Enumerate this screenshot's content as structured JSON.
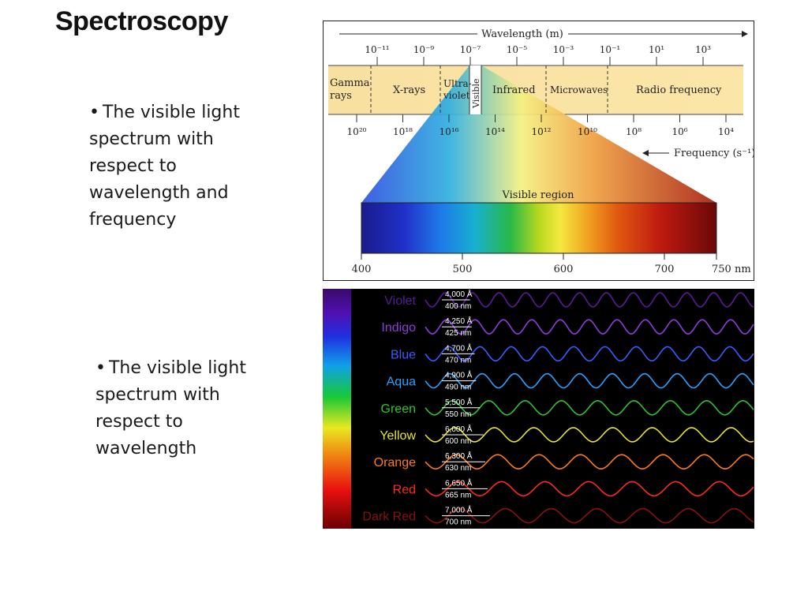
{
  "title": "Spectroscopy",
  "bullets": [
    "The visible light spectrum with respect to wavelength and frequency",
    "The visible light spectrum with respect to wavelength"
  ],
  "em_spectrum": {
    "wavelength_label": "Wavelength (m)",
    "frequency_label": "Frequency (s⁻¹)",
    "visible_region_label": "Visible region",
    "wavelength_ticks": [
      "10⁻¹¹",
      "10⁻⁹",
      "10⁻⁷",
      "10⁻⁵",
      "10⁻³",
      "10⁻¹",
      "10¹",
      "10³"
    ],
    "frequency_ticks": [
      "10²⁰",
      "10¹⁸",
      "10¹⁶",
      "10¹⁴",
      "10¹²",
      "10¹⁰",
      "10⁸",
      "10⁶",
      "10⁴"
    ],
    "regions": [
      "Gamma",
      "rays",
      "X-rays",
      "Ultra-",
      "violet",
      "Visible",
      "Infrared",
      "Microwaves",
      "Radio frequency"
    ],
    "nm_ticks": [
      "400",
      "500",
      "600",
      "700",
      "750 nm"
    ]
  },
  "visible_waves": [
    {
      "name": "Violet",
      "angstrom": "4,000 Å",
      "nm": "400 nm",
      "color": "#5a1a9a"
    },
    {
      "name": "Indigo",
      "angstrom": "4,250 Å",
      "nm": "425 nm",
      "color": "#8a3fd8"
    },
    {
      "name": "Blue",
      "angstrom": "4,700 Å",
      "nm": "470 nm",
      "color": "#3a5cff"
    },
    {
      "name": "Aqua",
      "angstrom": "4,900 Å",
      "nm": "490 nm",
      "color": "#2aa0ff"
    },
    {
      "name": "Green",
      "angstrom": "5,500 Å",
      "nm": "550 nm",
      "color": "#2fc42f"
    },
    {
      "name": "Yellow",
      "angstrom": "6,000 Å",
      "nm": "600 nm",
      "color": "#e6e62a"
    },
    {
      "name": "Orange",
      "angstrom": "6,300 Å",
      "nm": "630 nm",
      "color": "#ff7a1a"
    },
    {
      "name": "Red",
      "angstrom": "6,650 Å",
      "nm": "665 nm",
      "color": "#ff2a1a"
    },
    {
      "name": "Dark Red",
      "angstrom": "7,000 Å",
      "nm": "700 nm",
      "color": "#8a1010"
    }
  ]
}
